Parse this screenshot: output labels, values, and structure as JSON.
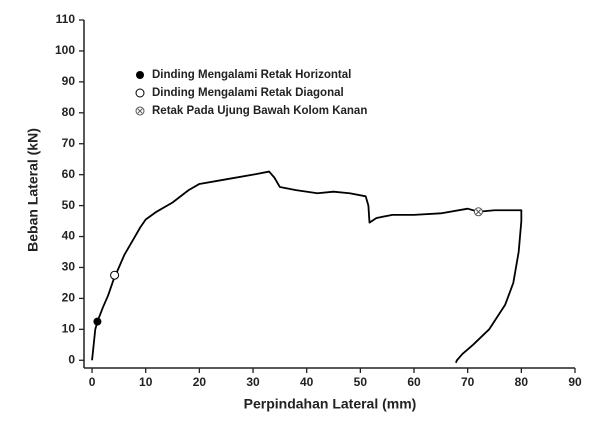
{
  "chart_data": {
    "type": "line",
    "xlabel": "Perpindahan Lateral (mm)",
    "ylabel": "Beban Lateral (kN)",
    "xlim": [
      -1.5,
      90
    ],
    "ylim": [
      -2.5,
      110
    ],
    "xticks": [
      0,
      10,
      20,
      30,
      40,
      50,
      60,
      70,
      80,
      90
    ],
    "yticks": [
      0,
      10,
      20,
      30,
      40,
      50,
      60,
      70,
      80,
      90,
      100,
      110
    ],
    "grid": false,
    "legend": "upper left",
    "series": [
      {
        "type": "line",
        "color": "#000000",
        "x": [
          0,
          0.3,
          0.6,
          1,
          2,
          3,
          4,
          5,
          6,
          7,
          8,
          9,
          10,
          12,
          15,
          18,
          20,
          25,
          30,
          33,
          34,
          35,
          38,
          42,
          45,
          48,
          51,
          51.5,
          51.7,
          53,
          56,
          60,
          65,
          70,
          72,
          75,
          78,
          80,
          80,
          79.5,
          78.5,
          77,
          74,
          71,
          69,
          68,
          67.8
        ],
        "values": [
          0,
          5,
          10,
          12.5,
          17,
          21,
          26,
          30,
          34,
          37,
          40,
          43,
          45.5,
          48,
          51,
          55,
          57,
          58.5,
          60,
          61,
          59,
          56,
          55,
          54,
          54.5,
          54,
          53,
          50,
          44.5,
          46,
          47,
          47,
          47.5,
          49,
          48,
          48.5,
          48.5,
          48.5,
          45,
          35,
          25,
          18,
          10,
          5,
          2,
          0,
          -0.8
        ]
      },
      {
        "type": "scatter",
        "name": "Dinding Mengalami Retak Horizontal",
        "marker": "filled",
        "color": "#000000",
        "x": [
          1
        ],
        "values": [
          12.5
        ]
      },
      {
        "type": "scatter",
        "name": "Dinding Mengalami Retak Diagonal",
        "marker": "open",
        "color": "#000000",
        "x": [
          4.2
        ],
        "values": [
          27.5
        ]
      },
      {
        "type": "scatter",
        "name": "Retak Pada Ujung Bawah Kolom Kanan",
        "marker": "cross",
        "color": "#555555",
        "x": [
          72
        ],
        "values": [
          48
        ]
      }
    ]
  }
}
